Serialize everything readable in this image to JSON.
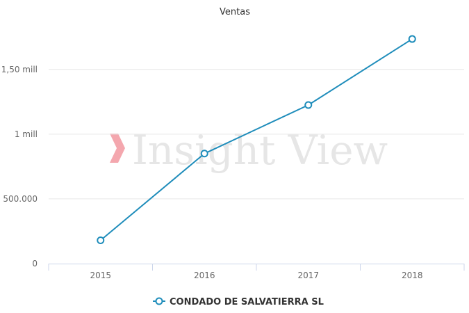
{
  "chart_data": {
    "type": "line",
    "title": "Ventas",
    "xlabel": "",
    "ylabel": "",
    "categories": [
      "2015",
      "2016",
      "2017",
      "2018"
    ],
    "series": [
      {
        "name": "CONDADO DE SALVATIERRA SL",
        "values": [
          180000,
          850000,
          1225000,
          1735000
        ],
        "color": "#1f8dbb"
      }
    ],
    "ylim": [
      0,
      1875000
    ],
    "yticks": [
      {
        "value": 0,
        "label": "0"
      },
      {
        "value": 500000,
        "label": "500.000"
      },
      {
        "value": 1000000,
        "label": "1 mill"
      },
      {
        "value": 1500000,
        "label": "1,50 mill"
      }
    ],
    "grid": true,
    "legend": "bottom-center"
  },
  "watermark": {
    "text": "Insight View",
    "accent_color": "#f4a7ae",
    "text_color": "#e6e6e6"
  }
}
